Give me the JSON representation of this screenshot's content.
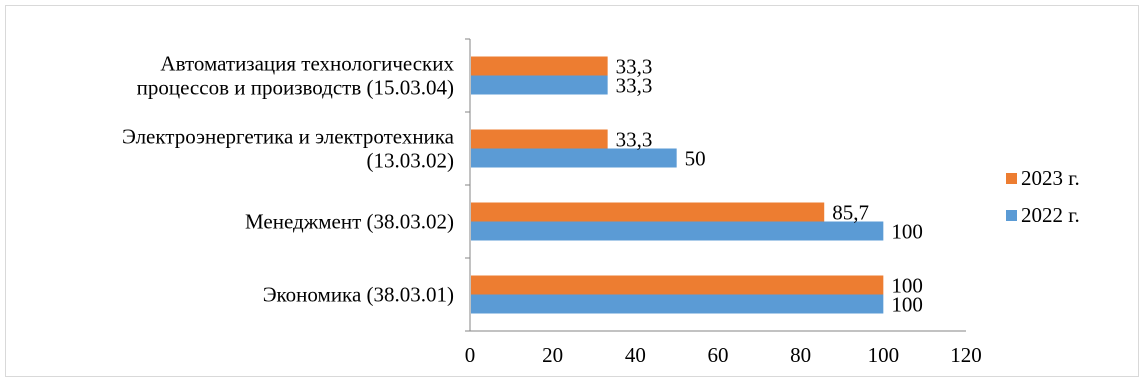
{
  "chart_data": {
    "type": "bar",
    "orientation": "horizontal",
    "categories": [
      [
        "Экономика (38.03.01)"
      ],
      [
        "Менеджмент (38.03.02)"
      ],
      [
        "Электроэнергетика и электротехника",
        "(13.03.02)"
      ],
      [
        "Автоматизация технологических",
        "процессов и производств (15.03.04)"
      ]
    ],
    "series": [
      {
        "name": "2023 г.",
        "color": "#ed7d31",
        "values": [
          100,
          85.7,
          33.3,
          33.3
        ],
        "labels": [
          "100",
          "85,7",
          "33,3",
          "33,3"
        ]
      },
      {
        "name": "2022 г.",
        "color": "#5b9bd5",
        "values": [
          100,
          100,
          50,
          33.3
        ],
        "labels": [
          "100",
          "100",
          "50",
          "33,3"
        ]
      }
    ],
    "xlim": [
      0,
      120
    ],
    "xticks": [
      "0",
      "20",
      "40",
      "60",
      "80",
      "100",
      "120"
    ],
    "grid": false,
    "legend_position": "right"
  }
}
